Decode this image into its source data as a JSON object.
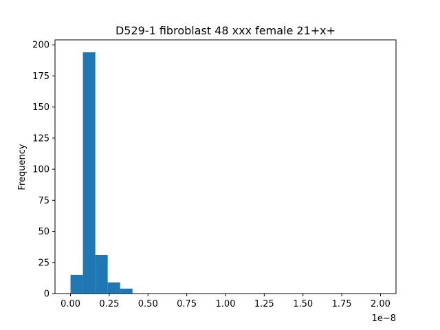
{
  "chart_data": {
    "type": "bar",
    "title": "D529-1 fibroblast 48 xxx female 21+x+",
    "xlabel": "",
    "ylabel": "Frequency",
    "x_offset_label": "1e−8",
    "x_scale_exponent": -8,
    "xlim": [
      -0.1,
      2.1
    ],
    "ylim": [
      0,
      204
    ],
    "bin_width": 0.08,
    "bins": [
      {
        "start": 0.0,
        "end": 0.08,
        "count": 15
      },
      {
        "start": 0.08,
        "end": 0.16,
        "count": 194
      },
      {
        "start": 0.16,
        "end": 0.24,
        "count": 31
      },
      {
        "start": 0.24,
        "end": 0.32,
        "count": 9
      },
      {
        "start": 0.32,
        "end": 0.4,
        "count": 4
      }
    ],
    "x_ticks": [
      {
        "value": 0.0,
        "label": "0.00"
      },
      {
        "value": 0.25,
        "label": "0.25"
      },
      {
        "value": 0.5,
        "label": "0.50"
      },
      {
        "value": 0.75,
        "label": "0.75"
      },
      {
        "value": 1.0,
        "label": "1.00"
      },
      {
        "value": 1.25,
        "label": "1.25"
      },
      {
        "value": 1.5,
        "label": "1.50"
      },
      {
        "value": 1.75,
        "label": "1.75"
      },
      {
        "value": 2.0,
        "label": "2.00"
      }
    ],
    "y_ticks": [
      {
        "value": 0,
        "label": "0"
      },
      {
        "value": 25,
        "label": "25"
      },
      {
        "value": 50,
        "label": "50"
      },
      {
        "value": 75,
        "label": "75"
      },
      {
        "value": 100,
        "label": "100"
      },
      {
        "value": 125,
        "label": "125"
      },
      {
        "value": 150,
        "label": "150"
      },
      {
        "value": 175,
        "label": "175"
      },
      {
        "value": 200,
        "label": "200"
      }
    ],
    "grid": false,
    "legend": "none",
    "bar_color": "#1f77b4"
  }
}
